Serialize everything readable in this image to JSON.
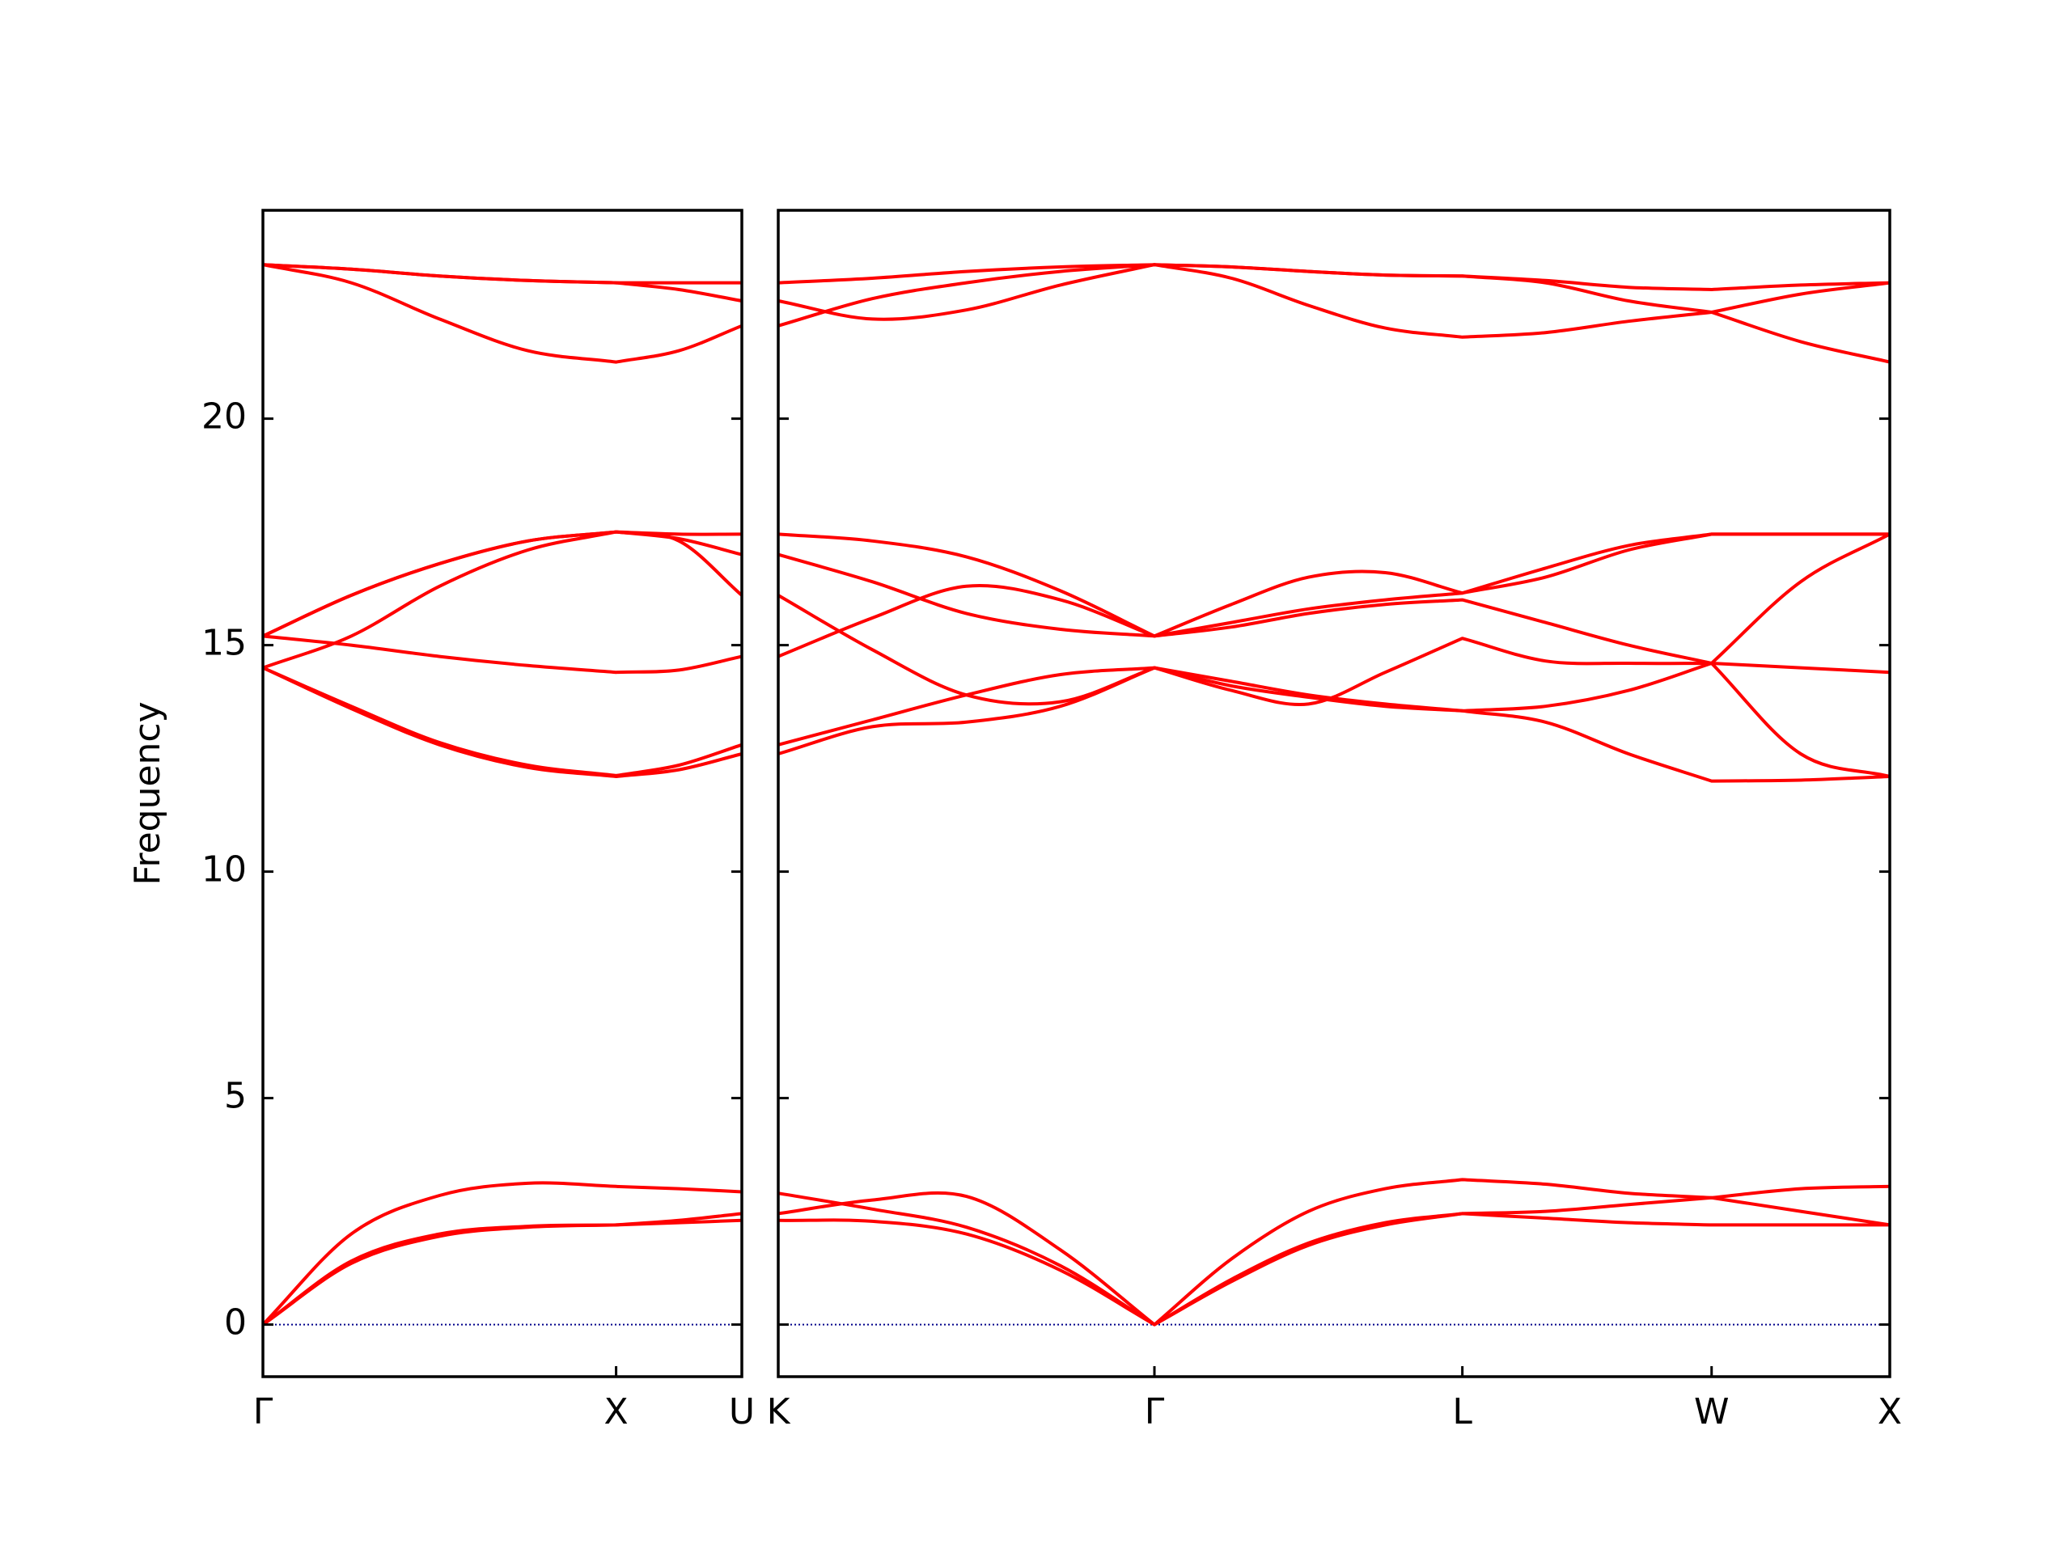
{
  "chart_data": [
    {
      "type": "line",
      "ylabel": "Frequency",
      "xlim": [
        0,
        1.356
      ],
      "ylim": [
        -1.15,
        24.6
      ],
      "xticks": [
        {
          "value": 0,
          "label": "Γ"
        },
        {
          "value": 1.0,
          "label": "X"
        },
        {
          "value": 1.356,
          "label": "U"
        }
      ],
      "yticks": [
        0,
        5,
        10,
        15,
        20
      ],
      "show_ytick_labels": true,
      "zero_line_color": "#00008b",
      "x": [
        0,
        0.25,
        0.5,
        0.75,
        1.0,
        1.178,
        1.356
      ],
      "series": [
        {
          "color": "#ff0000",
          "values": [
            0,
            1.35,
            1.95,
            2.15,
            2.2,
            2.25,
            2.3
          ]
        },
        {
          "color": "#ff0000",
          "values": [
            0,
            1.4,
            2.0,
            2.17,
            2.2,
            2.3,
            2.45
          ]
        },
        {
          "color": "#ff0000",
          "values": [
            0,
            2.0,
            2.85,
            3.12,
            3.05,
            3.0,
            2.93
          ]
        },
        {
          "color": "#ff0000",
          "values": [
            14.5,
            13.6,
            12.8,
            12.3,
            12.1,
            12.25,
            12.6
          ]
        },
        {
          "color": "#ff0000",
          "values": [
            14.5,
            13.65,
            12.85,
            12.35,
            12.12,
            12.35,
            12.8
          ]
        },
        {
          "color": "#ff0000",
          "values": [
            15.2,
            15.0,
            14.75,
            14.55,
            14.4,
            14.45,
            14.75
          ]
        },
        {
          "color": "#ff0000",
          "values": [
            14.5,
            15.2,
            16.3,
            17.1,
            17.5,
            17.3,
            16.1
          ]
        },
        {
          "color": "#ff0000",
          "values": [
            15.2,
            16.1,
            16.8,
            17.3,
            17.5,
            17.45,
            17.45
          ]
        },
        {
          "color": "#ff0000",
          "values": [
            15.2,
            16.1,
            16.8,
            17.3,
            17.5,
            17.35,
            17.0
          ]
        },
        {
          "color": "#ff0000",
          "values": [
            23.4,
            23.0,
            22.2,
            21.5,
            21.25,
            21.5,
            22.05
          ]
        },
        {
          "color": "#ff0000",
          "values": [
            23.4,
            23.3,
            23.15,
            23.05,
            23.0,
            22.85,
            22.6
          ]
        },
        {
          "color": "#ff0000",
          "values": [
            23.4,
            23.3,
            23.15,
            23.05,
            23.0,
            23.0,
            23.0
          ]
        }
      ]
    },
    {
      "type": "line",
      "xlim": [
        1.356,
        4.5
      ],
      "ylim": [
        -1.15,
        24.6
      ],
      "xticks": [
        {
          "value": 1.356,
          "label": "K"
        },
        {
          "value": 2.42,
          "label": "Γ"
        },
        {
          "value": 3.291,
          "label": "L"
        },
        {
          "value": 3.996,
          "label": "W"
        },
        {
          "value": 4.5,
          "label": "X"
        }
      ],
      "yticks": [
        0,
        5,
        10,
        15,
        20
      ],
      "show_ytick_labels": false,
      "zero_line_color": "#00008b",
      "x": [
        1.356,
        1.622,
        1.888,
        2.154,
        2.42,
        2.638,
        2.856,
        3.073,
        3.291,
        3.526,
        3.761,
        3.996,
        4.248,
        4.5
      ],
      "series": [
        {
          "color": "#ff0000",
          "values": [
            2.3,
            2.28,
            2.0,
            1.2,
            0,
            0.95,
            1.75,
            2.2,
            2.45,
            2.35,
            2.25,
            2.2,
            2.2,
            2.2
          ]
        },
        {
          "color": "#ff0000",
          "values": [
            2.9,
            2.55,
            2.15,
            1.3,
            0,
            1.0,
            1.8,
            2.25,
            2.45,
            2.5,
            2.65,
            2.8,
            2.5,
            2.2
          ]
        },
        {
          "color": "#ff0000",
          "values": [
            2.45,
            2.75,
            2.83,
            1.65,
            0,
            1.45,
            2.5,
            3.0,
            3.2,
            3.1,
            2.9,
            2.8,
            3.0,
            3.05
          ]
        },
        {
          "color": "#ff0000",
          "values": [
            17.45,
            17.3,
            16.95,
            16.2,
            15.2,
            15.5,
            15.8,
            16.0,
            16.15,
            16.7,
            17.2,
            17.45,
            17.45,
            17.45
          ]
        },
        {
          "color": "#ff0000",
          "values": [
            17.0,
            16.4,
            15.7,
            15.35,
            15.2,
            15.9,
            16.5,
            16.6,
            16.15,
            16.5,
            17.1,
            17.45,
            17.45,
            17.45
          ]
        },
        {
          "color": "#ff0000",
          "values": [
            14.75,
            15.6,
            16.3,
            16.0,
            15.2,
            15.4,
            15.7,
            15.9,
            16.0,
            15.5,
            15.0,
            14.6,
            16.4,
            17.45
          ]
        },
        {
          "color": "#ff0000",
          "values": [
            16.1,
            14.9,
            13.9,
            13.75,
            14.5,
            14.0,
            13.7,
            14.4,
            15.15,
            14.65,
            14.6,
            14.6,
            14.5,
            14.4
          ]
        },
        {
          "color": "#ff0000",
          "values": [
            12.8,
            13.35,
            13.9,
            14.35,
            14.5,
            14.1,
            13.85,
            13.65,
            13.55,
            13.65,
            14.0,
            14.6,
            12.6,
            12.1
          ]
        },
        {
          "color": "#ff0000",
          "values": [
            12.6,
            13.2,
            13.3,
            13.65,
            14.5,
            14.2,
            13.9,
            13.7,
            13.55,
            13.3,
            12.6,
            12.0,
            12.02,
            12.1
          ]
        },
        {
          "color": "#ff0000",
          "values": [
            23.0,
            23.1,
            23.25,
            23.35,
            23.4,
            23.35,
            23.25,
            23.17,
            23.15,
            23.05,
            22.9,
            22.85,
            22.95,
            23.0
          ]
        },
        {
          "color": "#ff0000",
          "values": [
            22.6,
            22.2,
            22.4,
            22.95,
            23.4,
            23.1,
            22.5,
            22.0,
            21.8,
            21.9,
            22.15,
            22.35,
            21.7,
            21.25
          ]
        },
        {
          "color": "#ff0000",
          "values": [
            22.05,
            22.65,
            23.0,
            23.25,
            23.4,
            23.35,
            23.25,
            23.17,
            23.15,
            23.0,
            22.6,
            22.35,
            22.75,
            23.0
          ]
        }
      ]
    }
  ]
}
